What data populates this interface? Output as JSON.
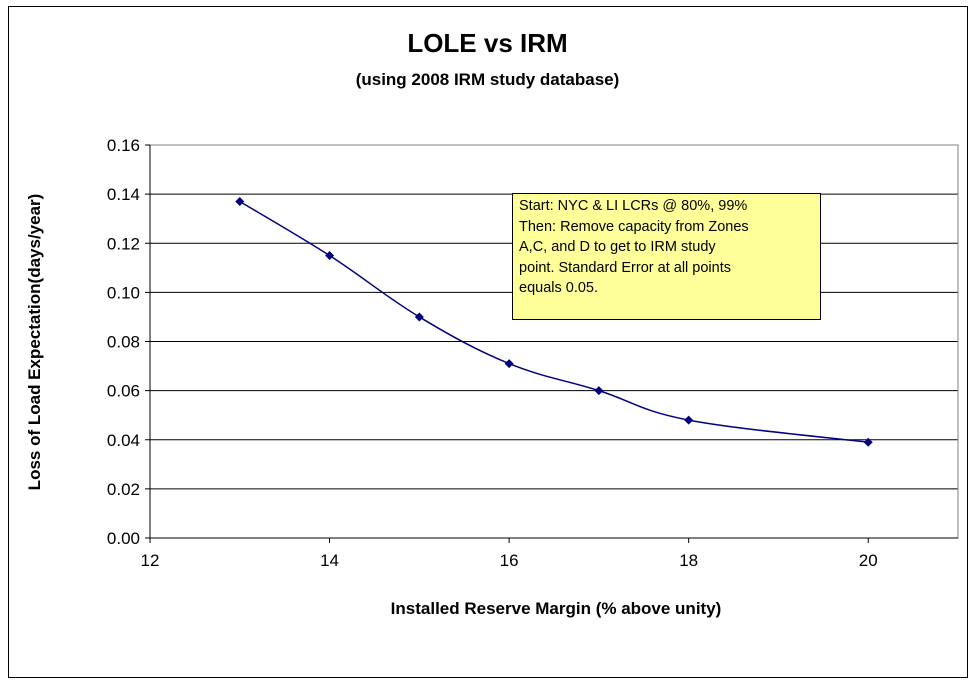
{
  "chart_data": {
    "type": "line",
    "title": "LOLE vs IRM",
    "subtitle": "(using 2008 IRM study database)",
    "xlabel": "Installed Reserve Margin (% above unity)",
    "ylabel": "Loss of Load Expectation(days/year)",
    "xlim": [
      12,
      21
    ],
    "ylim": [
      0,
      0.16
    ],
    "x_ticks": [
      "12",
      "14",
      "16",
      "18",
      "20"
    ],
    "y_ticks": [
      "0.00",
      "0.02",
      "0.04",
      "0.06",
      "0.08",
      "0.10",
      "0.12",
      "0.14",
      "0.16"
    ],
    "grid": "horizontal",
    "series": [
      {
        "x": [
          13,
          14,
          15,
          16,
          17,
          18,
          20
        ],
        "values": [
          0.137,
          0.115,
          0.09,
          0.071,
          0.06,
          0.048,
          0.039
        ],
        "color": "#000080"
      }
    ],
    "annotation": {
      "lines": [
        "Start: NYC & LI LCRs @ 80%, 99%",
        "Then: Remove capacity from Zones",
        "A,C, and D to get to IRM study",
        "point.  Standard Error at all points",
        "equals 0.05."
      ],
      "background": "#ffff99"
    }
  }
}
